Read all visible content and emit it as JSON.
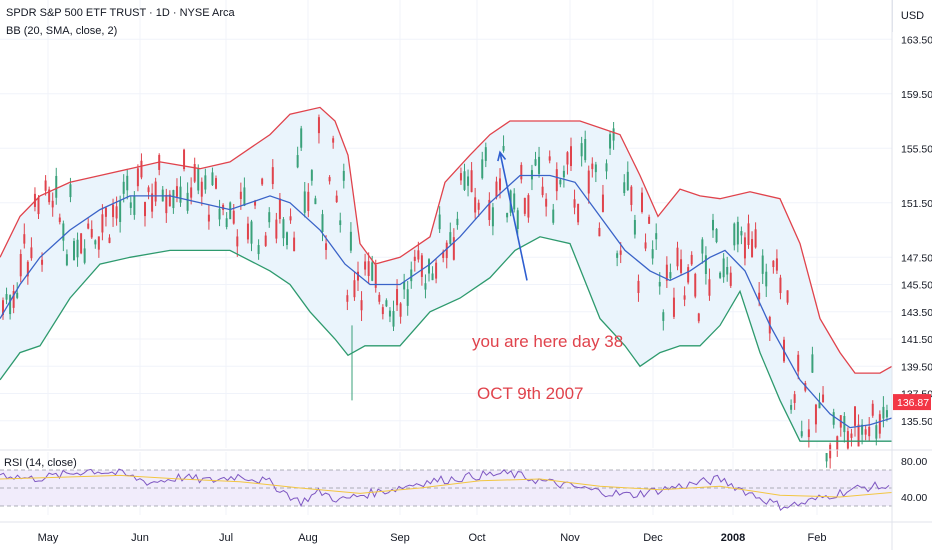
{
  "header": {
    "title": "SPDR S&P 500 ETF TRUST · 1D · NYSE Arca",
    "indicator": "BB (20, SMA, close, 2)",
    "currency": "USD"
  },
  "annotations": {
    "line1": "you are here day 38",
    "line2": "OCT 9th 2007"
  },
  "colors": {
    "upper_band": "#e0434c",
    "basis": "#3a63c8",
    "lower_band": "#2e9a6e",
    "band_fill": "#eaf4fc",
    "candle_up": "#3aa17a",
    "candle_down": "#e0434c",
    "annotation": "#e0434c",
    "arrow": "#2f5fd0",
    "rsi_line": "#7e57c2",
    "rsi_ma": "#f2c641",
    "rsi_fill": "#f1ecfb",
    "price_label_bg": "#f23645"
  },
  "chart_data": [
    {
      "type": "candlestick",
      "x_axis": [
        "May",
        "Jun",
        "Jul",
        "Aug",
        "Sep",
        "Oct",
        "Nov",
        "Dec",
        "2008",
        "Feb"
      ],
      "y_ticks": [
        135.5,
        137.5,
        139.5,
        141.5,
        143.5,
        145.5,
        147.5,
        151.5,
        155.5,
        159.5,
        163.5
      ],
      "y_range": [
        133.5,
        165.5
      ],
      "last_price": 136.87,
      "upper_band": [
        [
          0,
          147.5
        ],
        [
          20,
          150.5
        ],
        [
          40,
          152.0
        ],
        [
          70,
          153.0
        ],
        [
          100,
          153.5
        ],
        [
          130,
          154.0
        ],
        [
          160,
          154.5
        ],
        [
          200,
          154.0
        ],
        [
          230,
          154.5
        ],
        [
          270,
          156.5
        ],
        [
          290,
          158.0
        ],
        [
          320,
          158.5
        ],
        [
          335,
          157.5
        ],
        [
          348,
          155.0
        ],
        [
          360,
          148.5
        ],
        [
          375,
          147.0
        ],
        [
          400,
          147.5
        ],
        [
          430,
          149.0
        ],
        [
          445,
          153.0
        ],
        [
          470,
          155.0
        ],
        [
          490,
          156.5
        ],
        [
          510,
          157.5
        ],
        [
          545,
          157.5
        ],
        [
          580,
          157.5
        ],
        [
          620,
          156.5
        ],
        [
          640,
          153.5
        ],
        [
          658,
          150.5
        ],
        [
          680,
          152.5
        ],
        [
          700,
          152.0
        ],
        [
          720,
          151.8
        ],
        [
          750,
          152.3
        ],
        [
          780,
          151.8
        ],
        [
          800,
          148.5
        ],
        [
          820,
          143.0
        ],
        [
          840,
          140.5
        ],
        [
          855,
          139.0
        ],
        [
          880,
          139.0
        ],
        [
          892,
          139.5
        ]
      ],
      "basis": [
        [
          0,
          143.0
        ],
        [
          20,
          145.5
        ],
        [
          40,
          147.5
        ],
        [
          70,
          149.5
        ],
        [
          100,
          151.0
        ],
        [
          130,
          152.0
        ],
        [
          170,
          152.0
        ],
        [
          200,
          151.5
        ],
        [
          230,
          151.0
        ],
        [
          270,
          152.0
        ],
        [
          290,
          151.5
        ],
        [
          320,
          149.5
        ],
        [
          345,
          147.0
        ],
        [
          370,
          145.5
        ],
        [
          400,
          145.5
        ],
        [
          430,
          147.0
        ],
        [
          460,
          149.0
        ],
        [
          490,
          151.5
        ],
        [
          520,
          153.5
        ],
        [
          550,
          153.5
        ],
        [
          575,
          153.0
        ],
        [
          600,
          150.5
        ],
        [
          625,
          148.0
        ],
        [
          650,
          146.5
        ],
        [
          670,
          145.8
        ],
        [
          690,
          146.5
        ],
        [
          710,
          147.5
        ],
        [
          725,
          148.0
        ],
        [
          745,
          146.5
        ],
        [
          770,
          142.5
        ],
        [
          800,
          138.5
        ],
        [
          830,
          136.0
        ],
        [
          850,
          135.0
        ],
        [
          870,
          135.2
        ],
        [
          892,
          135.7
        ]
      ],
      "lower_band": [
        [
          0,
          138.5
        ],
        [
          20,
          140.5
        ],
        [
          40,
          141.0
        ],
        [
          70,
          144.5
        ],
        [
          100,
          147.0
        ],
        [
          130,
          147.5
        ],
        [
          170,
          148.0
        ],
        [
          200,
          148.0
        ],
        [
          230,
          148.0
        ],
        [
          270,
          146.5
        ],
        [
          290,
          145.5
        ],
        [
          310,
          143.5
        ],
        [
          335,
          141.5
        ],
        [
          348,
          140.3
        ],
        [
          365,
          141.0
        ],
        [
          400,
          141.0
        ],
        [
          430,
          143.5
        ],
        [
          460,
          144.5
        ],
        [
          490,
          146.0
        ],
        [
          515,
          148.0
        ],
        [
          540,
          149.0
        ],
        [
          570,
          148.5
        ],
        [
          600,
          143.0
        ],
        [
          625,
          141.0
        ],
        [
          640,
          139.5
        ],
        [
          660,
          140.5
        ],
        [
          680,
          141.0
        ],
        [
          700,
          141.0
        ],
        [
          720,
          142.5
        ],
        [
          740,
          145.0
        ],
        [
          760,
          140.5
        ],
        [
          780,
          137.0
        ],
        [
          800,
          134.0
        ],
        [
          830,
          134.0
        ],
        [
          860,
          134.0
        ],
        [
          892,
          134.0
        ]
      ],
      "annotation_arrow": {
        "from": [
          527,
          145.8
        ],
        "to": [
          500,
          155.2
        ]
      }
    },
    {
      "type": "line",
      "title": "RSI (14, close)",
      "y_ticks": [
        80.0,
        40.0
      ],
      "y_range": [
        20,
        90
      ],
      "x_range": [
        0,
        892
      ],
      "bands": {
        "upper": 70,
        "middle": 50,
        "lower": 30
      },
      "series": [
        {
          "values": [
            [
              0,
              66
            ],
            [
              30,
              60
            ],
            [
              60,
              64
            ],
            [
              90,
              70
            ],
            [
              120,
              66
            ],
            [
              150,
              56
            ],
            [
              180,
              62
            ],
            [
              210,
              58
            ],
            [
              240,
              64
            ],
            [
              270,
              56
            ],
            [
              300,
              34
            ],
            [
              320,
              46
            ],
            [
              340,
              36
            ],
            [
              360,
              42
            ],
            [
              390,
              48
            ],
            [
              420,
              56
            ],
            [
              450,
              60
            ],
            [
              480,
              64
            ],
            [
              510,
              66
            ],
            [
              540,
              58
            ],
            [
              570,
              52
            ],
            [
              600,
              46
            ],
            [
              630,
              42
            ],
            [
              660,
              48
            ],
            [
              690,
              54
            ],
            [
              720,
              60
            ],
            [
              750,
              44
            ],
            [
              780,
              30
            ],
            [
              800,
              32
            ],
            [
              830,
              42
            ],
            [
              860,
              50
            ],
            [
              880,
              52
            ],
            [
              892,
              48
            ]
          ]
        },
        {
          "values": [
            [
              0,
              60
            ],
            [
              60,
              62
            ],
            [
              120,
              64
            ],
            [
              180,
              60
            ],
            [
              240,
              57
            ],
            [
              300,
              50
            ],
            [
              360,
              44
            ],
            [
              420,
              50
            ],
            [
              480,
              58
            ],
            [
              540,
              60
            ],
            [
              600,
              52
            ],
            [
              660,
              48
            ],
            [
              720,
              52
            ],
            [
              780,
              42
            ],
            [
              840,
              40
            ],
            [
              892,
              45
            ]
          ]
        }
      ]
    }
  ]
}
